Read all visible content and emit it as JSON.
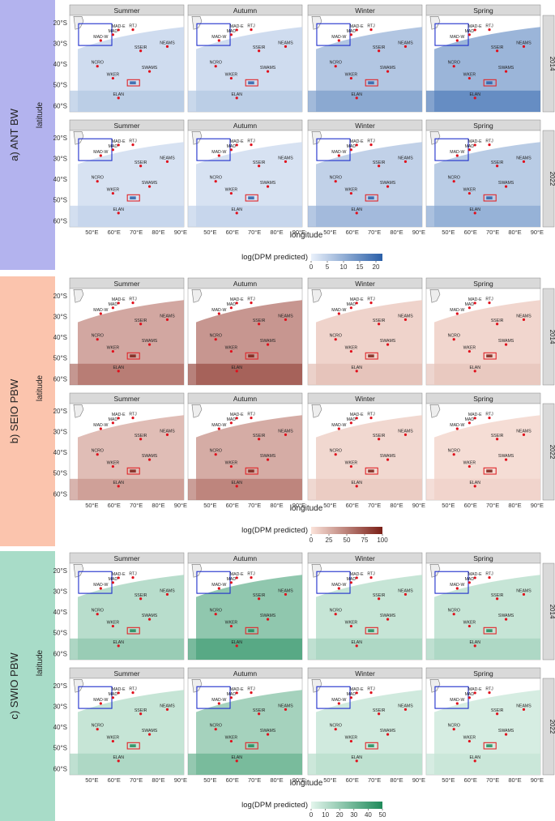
{
  "figure": {
    "years": [
      "2014",
      "2022"
    ],
    "seasons": [
      "Summer",
      "Autumn",
      "Winter",
      "Spring"
    ],
    "xlabel": "longitude",
    "ylabel": "latitude",
    "xticks": [
      "50°E",
      "60°E",
      "70°E",
      "80°E",
      "90°E"
    ],
    "yticks": [
      "20°S",
      "30°S",
      "40°S",
      "50°S",
      "60°S"
    ]
  },
  "chart_data": [
    {
      "type": "heatmap",
      "panel_label": "a) ANT BW",
      "colorbar_title": "log(DPM predicted)",
      "colorbar_ticks": [
        "0",
        "5",
        "10",
        "15",
        "20"
      ],
      "colorbar_range": [
        0,
        22
      ],
      "colors": {
        "low": "#eaf1fb",
        "high": "#2a5fa8",
        "band": "#b3b3ee"
      },
      "rows": [
        "2014",
        "2022"
      ],
      "columns": [
        "Summer",
        "Autumn",
        "Winter",
        "Spring"
      ],
      "intensity": [
        [
          4,
          4,
          8,
          11
        ],
        [
          3,
          3,
          6,
          7
        ]
      ],
      "blue_box_shown": [
        [
          true,
          true,
          true,
          true
        ],
        [
          true,
          true,
          true,
          true
        ]
      ]
    },
    {
      "type": "heatmap",
      "panel_label": "b) SEIO PBW",
      "colorbar_title": "log(DPM predicted)",
      "colorbar_ticks": [
        "0",
        "25",
        "50",
        "75",
        "100"
      ],
      "colorbar_range": [
        0,
        100
      ],
      "colors": {
        "low": "#fbe3da",
        "high": "#7a1e16",
        "band": "#fbc4ad"
      },
      "rows": [
        "2014",
        "2022"
      ],
      "columns": [
        "Summer",
        "Autumn",
        "Winter",
        "Spring"
      ],
      "intensity": [
        [
          38,
          48,
          12,
          10
        ],
        [
          25,
          35,
          9,
          6
        ]
      ],
      "blue_box_shown": [
        [
          false,
          false,
          false,
          false
        ],
        [
          false,
          false,
          false,
          false
        ]
      ]
    },
    {
      "type": "heatmap",
      "panel_label": "c) SWIO PBW",
      "colorbar_title": "log(DPM predicted)",
      "colorbar_ticks": [
        "0",
        "10",
        "20",
        "30",
        "40",
        "50"
      ],
      "colorbar_range": [
        0,
        50
      ],
      "colors": {
        "low": "#e3f5ec",
        "high": "#1f8a5a",
        "band": "#a8dcc8"
      },
      "rows": [
        "2014",
        "2022"
      ],
      "columns": [
        "Summer",
        "Autumn",
        "Winter",
        "Spring"
      ],
      "intensity": [
        [
          14,
          26,
          10,
          10
        ],
        [
          10,
          20,
          7,
          5
        ]
      ],
      "blue_box_shown": [
        [
          true,
          true,
          true,
          true
        ],
        [
          true,
          true,
          true,
          true
        ]
      ]
    }
  ],
  "stations": [
    {
      "name": "MAD-E",
      "lon": 62,
      "lat": -23.5
    },
    {
      "name": "MAD",
      "lon": 59.5,
      "lat": -25.8
    },
    {
      "name": "MAD-W",
      "lon": 54,
      "lat": -28.6
    },
    {
      "name": "RTJ",
      "lon": 68.5,
      "lat": -23.4
    },
    {
      "name": "NEAMS",
      "lon": 84,
      "lat": -31.5
    },
    {
      "name": "SSEIR",
      "lon": 72,
      "lat": -33.6
    },
    {
      "name": "NCRO",
      "lon": 52.5,
      "lat": -41
    },
    {
      "name": "SWAMS",
      "lon": 76,
      "lat": -43.5
    },
    {
      "name": "WKER",
      "lon": 59.5,
      "lat": -46.8
    },
    {
      "name": "ELAN",
      "lon": 62,
      "lat": -56.3
    }
  ],
  "boxes": {
    "red": {
      "lon": [
        66,
        71.5
      ],
      "lat": [
        -47.5,
        -50.5
      ]
    },
    "blue": {
      "lon": [
        44,
        59
      ],
      "lat": [
        -20.5,
        -31
      ]
    }
  },
  "map_extent": {
    "lon": [
      40,
      91.5
    ],
    "lat": [
      -16.5,
      -63
    ]
  }
}
